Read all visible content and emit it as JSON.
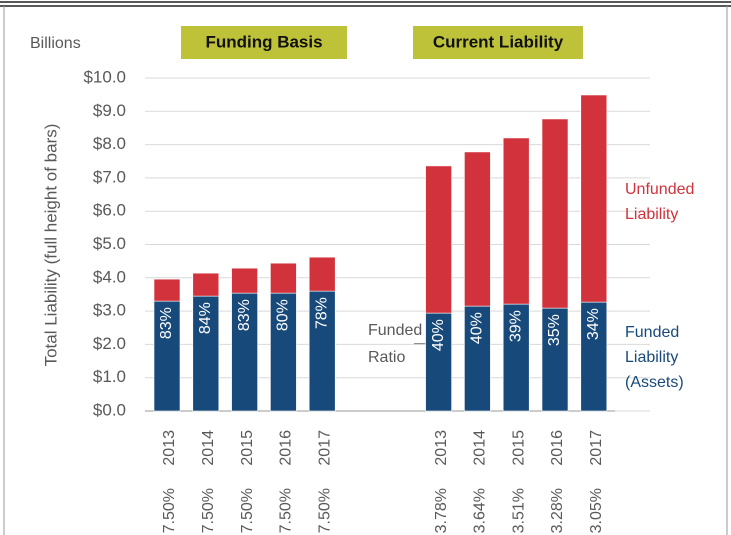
{
  "chart_data": {
    "type": "stacked_bar",
    "unit_label": "Billions",
    "ylabel": "Total Liability (full height of bars)",
    "groups": [
      "Funding Basis",
      "Current Liability"
    ],
    "categories": [
      "2013",
      "2014",
      "2015",
      "2016",
      "2017",
      null,
      null,
      "2013",
      "2014",
      "2015",
      "2016",
      "2017"
    ],
    "discount_rates": [
      "7.50%",
      "7.50%",
      "7.50%",
      "7.50%",
      "7.50%",
      null,
      null,
      "3.78%",
      "3.64%",
      "3.51%",
      "3.28%",
      "3.05%"
    ],
    "series": [
      {
        "name": "Funded Liability (Assets)",
        "color": "#17497a",
        "values": [
          3.3,
          3.45,
          3.54,
          3.54,
          3.6,
          null,
          null,
          2.94,
          3.15,
          3.21,
          3.09,
          3.27
        ],
        "ratio_labels": [
          "83%",
          "84%",
          "83%",
          "80%",
          "78%",
          null,
          null,
          "40%",
          "40%",
          "39%",
          "35%",
          "34%"
        ]
      },
      {
        "name": "Unfunded Liability",
        "color": "#d2323b",
        "values": [
          0.66,
          0.69,
          0.75,
          0.9,
          1.02,
          null,
          null,
          4.42,
          4.63,
          4.99,
          5.68,
          6.22
        ]
      }
    ],
    "annotation": "Funded Ratio",
    "ylim": [
      0,
      10
    ],
    "yticks": [
      {
        "value": 0,
        "label": "$0.0"
      },
      {
        "value": 1,
        "label": "$1.0"
      },
      {
        "value": 2,
        "label": "$2.0"
      },
      {
        "value": 3,
        "label": "$3.0"
      },
      {
        "value": 4,
        "label": "$4.0"
      },
      {
        "value": 5,
        "label": "$5.0"
      },
      {
        "value": 6,
        "label": "$6.0"
      },
      {
        "value": 7,
        "label": "$7.0"
      },
      {
        "value": 8,
        "label": "$8.0"
      },
      {
        "value": 9,
        "label": "$9.0"
      },
      {
        "value": 10,
        "label": "$10.0"
      }
    ],
    "grid": true
  }
}
